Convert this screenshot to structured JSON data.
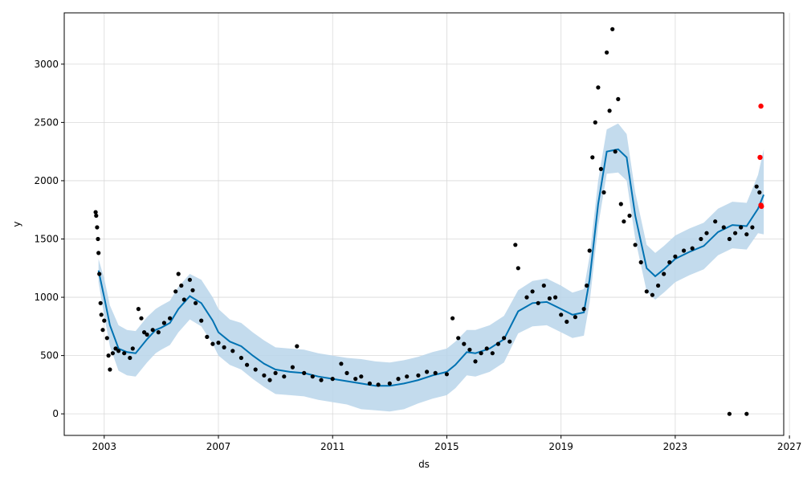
{
  "chart_data": {
    "type": "line",
    "title": "",
    "xlabel": "ds",
    "ylabel": "y",
    "xlim": [
      2001.6,
      2026.8
    ],
    "ylim": [
      -185,
      3440
    ],
    "grid": true,
    "x_ticks": [
      2003,
      2007,
      2011,
      2015,
      2019,
      2023,
      2027
    ],
    "y_ticks": [
      0,
      500,
      1000,
      1500,
      2000,
      2500,
      3000
    ],
    "colors": {
      "forecast_line": "#0072B2",
      "uncertainty_band": "#b9d5ea",
      "observed_points": "#000000",
      "highlight_points": "#ff0000",
      "grid": "#d9d9d9"
    },
    "series": [
      {
        "kind": "forecast",
        "x": [
          2002.8,
          2003.0,
          2003.2,
          2003.5,
          2003.8,
          2004.1,
          2004.5,
          2004.8,
          2005.0,
          2005.3,
          2005.6,
          2006.0,
          2006.4,
          2006.8,
          2007.0,
          2007.4,
          2007.8,
          2008.2,
          2008.6,
          2009.0,
          2009.5,
          2010.0,
          2010.5,
          2011.0,
          2011.5,
          2012.0,
          2012.5,
          2013.0,
          2013.5,
          2014.0,
          2014.5,
          2015.0,
          2015.3,
          2015.7,
          2016.0,
          2016.5,
          2017.0,
          2017.5,
          2018.0,
          2018.5,
          2019.0,
          2019.4,
          2019.8,
          2020.0,
          2020.3,
          2020.6,
          2021.0,
          2021.3,
          2021.6,
          2022.0,
          2022.3,
          2022.6,
          2023.0,
          2023.5,
          2024.0,
          2024.5,
          2025.0,
          2025.5,
          2025.9,
          2026.1
        ],
        "y": [
          1230,
          1000,
          760,
          560,
          530,
          520,
          640,
          720,
          740,
          780,
          900,
          1010,
          950,
          800,
          700,
          620,
          580,
          500,
          430,
          380,
          360,
          350,
          320,
          300,
          280,
          260,
          240,
          240,
          260,
          290,
          330,
          360,
          420,
          530,
          520,
          560,
          640,
          880,
          950,
          960,
          900,
          850,
          870,
          1150,
          1800,
          2250,
          2270,
          2200,
          1700,
          1250,
          1180,
          1240,
          1330,
          1390,
          1440,
          1560,
          1620,
          1610,
          1760,
          1880
        ]
      },
      {
        "kind": "uncertainty_upper",
        "x": [
          2002.8,
          2003.0,
          2003.2,
          2003.5,
          2003.8,
          2004.1,
          2004.5,
          2004.8,
          2005.0,
          2005.3,
          2005.6,
          2006.0,
          2006.4,
          2006.8,
          2007.0,
          2007.4,
          2007.8,
          2008.2,
          2008.6,
          2009.0,
          2009.5,
          2010.0,
          2010.5,
          2011.0,
          2011.5,
          2012.0,
          2012.5,
          2013.0,
          2013.5,
          2014.0,
          2014.5,
          2015.0,
          2015.3,
          2015.7,
          2016.0,
          2016.5,
          2017.0,
          2017.5,
          2018.0,
          2018.5,
          2019.0,
          2019.4,
          2019.8,
          2020.0,
          2020.3,
          2020.6,
          2021.0,
          2021.3,
          2021.6,
          2022.0,
          2022.3,
          2022.6,
          2023.0,
          2023.5,
          2024.0,
          2024.5,
          2025.0,
          2025.5,
          2025.9,
          2026.1
        ],
        "y": [
          1330,
          1160,
          930,
          760,
          720,
          710,
          830,
          900,
          930,
          970,
          1090,
          1200,
          1150,
          1000,
          900,
          810,
          780,
          700,
          630,
          570,
          560,
          550,
          520,
          500,
          480,
          470,
          450,
          440,
          460,
          490,
          530,
          560,
          620,
          720,
          720,
          760,
          840,
          1060,
          1140,
          1160,
          1100,
          1040,
          1070,
          1350,
          2000,
          2440,
          2490,
          2400,
          1900,
          1450,
          1380,
          1440,
          1530,
          1590,
          1640,
          1760,
          1820,
          1810,
          2050,
          2270
        ]
      },
      {
        "kind": "uncertainty_lower",
        "x": [
          2002.8,
          2003.0,
          2003.2,
          2003.5,
          2003.8,
          2004.1,
          2004.5,
          2004.8,
          2005.0,
          2005.3,
          2005.6,
          2006.0,
          2006.4,
          2006.8,
          2007.0,
          2007.4,
          2007.8,
          2008.2,
          2008.6,
          2009.0,
          2009.5,
          2010.0,
          2010.5,
          2011.0,
          2011.5,
          2012.0,
          2012.5,
          2013.0,
          2013.5,
          2014.0,
          2014.5,
          2015.0,
          2015.3,
          2015.7,
          2016.0,
          2016.5,
          2017.0,
          2017.5,
          2018.0,
          2018.5,
          2019.0,
          2019.4,
          2019.8,
          2020.0,
          2020.3,
          2020.6,
          2021.0,
          2021.3,
          2021.6,
          2022.0,
          2022.3,
          2022.6,
          2023.0,
          2023.5,
          2024.0,
          2024.5,
          2025.0,
          2025.5,
          2025.9,
          2026.1
        ],
        "y": [
          1130,
          840,
          580,
          370,
          330,
          320,
          440,
          520,
          550,
          590,
          700,
          810,
          750,
          600,
          500,
          420,
          380,
          300,
          230,
          170,
          160,
          150,
          120,
          100,
          80,
          40,
          30,
          20,
          40,
          90,
          130,
          160,
          220,
          330,
          320,
          360,
          440,
          690,
          750,
          760,
          700,
          650,
          670,
          950,
          1610,
          2060,
          2070,
          2000,
          1500,
          1050,
          980,
          1040,
          1130,
          1190,
          1240,
          1360,
          1420,
          1410,
          1550,
          1540
        ]
      },
      {
        "kind": "observed",
        "x": [
          2002.7,
          2002.72,
          2002.75,
          2002.78,
          2002.8,
          2002.83,
          2002.87,
          2002.9,
          2002.95,
          2003.0,
          2003.1,
          2003.15,
          2003.2,
          2003.3,
          2003.4,
          2003.5,
          2003.7,
          2003.9,
          2004.0,
          2004.2,
          2004.3,
          2004.4,
          2004.5,
          2004.7,
          2004.9,
          2005.1,
          2005.3,
          2005.5,
          2005.6,
          2005.7,
          2005.8,
          2006.0,
          2006.1,
          2006.2,
          2006.4,
          2006.6,
          2006.8,
          2007.0,
          2007.2,
          2007.5,
          2007.8,
          2008.0,
          2008.3,
          2008.6,
          2008.8,
          2009.0,
          2009.3,
          2009.6,
          2009.75,
          2010.0,
          2010.3,
          2010.6,
          2011.0,
          2011.3,
          2011.5,
          2011.8,
          2012.0,
          2012.3,
          2012.6,
          2013.0,
          2013.3,
          2013.6,
          2014.0,
          2014.3,
          2014.6,
          2015.0,
          2015.2,
          2015.4,
          2015.6,
          2015.8,
          2016.0,
          2016.2,
          2016.4,
          2016.6,
          2016.8,
          2017.0,
          2017.2,
          2017.4,
          2017.5,
          2017.8,
          2018.0,
          2018.2,
          2018.4,
          2018.6,
          2018.8,
          2019.0,
          2019.2,
          2019.5,
          2019.8,
          2019.9,
          2020.0,
          2020.1,
          2020.2,
          2020.3,
          2020.4,
          2020.5,
          2020.6,
          2020.7,
          2020.8,
          2020.9,
          2021.0,
          2021.1,
          2021.2,
          2021.4,
          2021.6,
          2021.8,
          2022.0,
          2022.2,
          2022.4,
          2022.6,
          2022.8,
          2023.0,
          2023.3,
          2023.6,
          2023.9,
          2024.1,
          2024.4,
          2024.7,
          2024.9,
          2025.1,
          2025.3,
          2025.5,
          2025.7,
          2025.85,
          2025.95
        ],
        "y": [
          1730,
          1700,
          1600,
          1500,
          1380,
          1200,
          950,
          850,
          720,
          800,
          650,
          500,
          380,
          520,
          560,
          540,
          520,
          480,
          560,
          900,
          820,
          700,
          680,
          720,
          700,
          780,
          820,
          1050,
          1200,
          1100,
          980,
          1150,
          1060,
          950,
          800,
          660,
          600,
          610,
          570,
          540,
          480,
          420,
          380,
          330,
          290,
          350,
          320,
          400,
          580,
          350,
          320,
          290,
          300,
          430,
          350,
          300,
          320,
          260,
          250,
          260,
          300,
          320,
          330,
          360,
          350,
          340,
          820,
          650,
          600,
          550,
          450,
          520,
          560,
          520,
          600,
          650,
          620,
          1450,
          1250,
          1000,
          1050,
          950,
          1100,
          990,
          1000,
          850,
          790,
          830,
          900,
          1100,
          1400,
          2200,
          2500,
          2800,
          2100,
          1900,
          3100,
          2600,
          3300,
          2250,
          2700,
          1800,
          1650,
          1700,
          1450,
          1300,
          1050,
          1020,
          1100,
          1200,
          1300,
          1350,
          1400,
          1420,
          1500,
          1550,
          1650,
          1600,
          1500,
          1550,
          1600,
          1540,
          1600,
          1950,
          1900
        ]
      },
      {
        "kind": "outliers_low",
        "x": [
          2024.9,
          2025.5
        ],
        "y": [
          0,
          0
        ]
      },
      {
        "kind": "highlight",
        "x": [
          2026.0,
          2026.0,
          2025.97,
          2026.02
        ],
        "y": [
          2640,
          1790,
          2200,
          1780
        ]
      }
    ]
  }
}
